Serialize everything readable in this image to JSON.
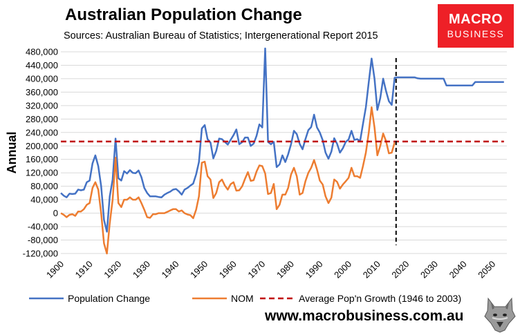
{
  "header": {
    "title": "Australian Population Change",
    "subtitle": "Sources: Australian Bureau of Statistics; Intergenerational Report 2015"
  },
  "logo": {
    "line1": "MACRO",
    "line2": "BUSINESS"
  },
  "footer": {
    "url": "www.macrobusiness.com.au"
  },
  "colors": {
    "population": "#4472c4",
    "nom": "#ed7d31",
    "average": "#c00000",
    "divider": "#000000",
    "logo_bg": "#ee2027"
  },
  "chart_data": {
    "type": "line",
    "title": "Australian Population Change",
    "xlabel": "",
    "ylabel": "Annual",
    "xlim": [
      1900,
      2055
    ],
    "ylim": [
      -120000,
      480000
    ],
    "yticks": [
      -120000,
      -80000,
      -40000,
      0,
      40000,
      80000,
      120000,
      160000,
      200000,
      240000,
      280000,
      320000,
      360000,
      400000,
      440000,
      480000
    ],
    "ytick_labels": [
      "-120,000",
      "-80,000",
      "-40,000",
      "0",
      "40,000",
      "80,000",
      "120,000",
      "160,000",
      "200,000",
      "240,000",
      "280,000",
      "320,000",
      "360,000",
      "400,000",
      "440,000",
      "480,000"
    ],
    "xticks": [
      1900,
      1910,
      1920,
      1930,
      1940,
      1950,
      1960,
      1970,
      1980,
      1990,
      2000,
      2010,
      2020,
      2030,
      2040,
      2050
    ],
    "xtick_labels": [
      "1900",
      "1910",
      "1920",
      "1930",
      "1940",
      "1950",
      "1960",
      "1970",
      "1980",
      "1990",
      "2000",
      "2010",
      "2020",
      "2030",
      "2040",
      "2050"
    ],
    "legend_position": "bottom",
    "series": [
      {
        "name": "Population Change",
        "color": "#4472c4",
        "points": [
          [
            1900,
            60000
          ],
          [
            1901,
            52000
          ],
          [
            1902,
            47000
          ],
          [
            1903,
            58000
          ],
          [
            1904,
            57000
          ],
          [
            1905,
            58000
          ],
          [
            1906,
            70000
          ],
          [
            1907,
            68000
          ],
          [
            1908,
            70000
          ],
          [
            1909,
            92000
          ],
          [
            1910,
            97000
          ],
          [
            1911,
            148000
          ],
          [
            1912,
            172000
          ],
          [
            1913,
            140000
          ],
          [
            1914,
            80000
          ],
          [
            1915,
            -20000
          ],
          [
            1916,
            -55000
          ],
          [
            1917,
            50000
          ],
          [
            1918,
            100000
          ],
          [
            1919,
            222000
          ],
          [
            1920,
            104000
          ],
          [
            1921,
            97000
          ],
          [
            1922,
            125000
          ],
          [
            1923,
            118000
          ],
          [
            1924,
            128000
          ],
          [
            1925,
            120000
          ],
          [
            1926,
            119000
          ],
          [
            1927,
            127000
          ],
          [
            1928,
            107000
          ],
          [
            1929,
            75000
          ],
          [
            1930,
            60000
          ],
          [
            1931,
            50000
          ],
          [
            1932,
            50000
          ],
          [
            1933,
            50000
          ],
          [
            1934,
            48000
          ],
          [
            1935,
            47000
          ],
          [
            1936,
            55000
          ],
          [
            1937,
            60000
          ],
          [
            1938,
            64000
          ],
          [
            1939,
            70000
          ],
          [
            1940,
            72000
          ],
          [
            1941,
            65000
          ],
          [
            1942,
            55000
          ],
          [
            1943,
            70000
          ],
          [
            1944,
            75000
          ],
          [
            1945,
            82000
          ],
          [
            1946,
            88000
          ],
          [
            1947,
            115000
          ],
          [
            1948,
            152000
          ],
          [
            1949,
            252000
          ],
          [
            1950,
            262000
          ],
          [
            1951,
            220000
          ],
          [
            1952,
            210000
          ],
          [
            1953,
            163000
          ],
          [
            1954,
            185000
          ],
          [
            1955,
            222000
          ],
          [
            1956,
            220000
          ],
          [
            1957,
            212000
          ],
          [
            1958,
            204000
          ],
          [
            1959,
            218000
          ],
          [
            1960,
            232000
          ],
          [
            1961,
            249000
          ],
          [
            1962,
            205000
          ],
          [
            1963,
            211000
          ],
          [
            1964,
            225000
          ],
          [
            1965,
            225000
          ],
          [
            1966,
            200000
          ],
          [
            1967,
            207000
          ],
          [
            1968,
            230000
          ],
          [
            1969,
            264000
          ],
          [
            1970,
            255000
          ],
          [
            1971,
            490000
          ],
          [
            1972,
            212000
          ],
          [
            1973,
            205000
          ],
          [
            1974,
            212000
          ],
          [
            1975,
            137000
          ],
          [
            1976,
            145000
          ],
          [
            1977,
            172000
          ],
          [
            1978,
            152000
          ],
          [
            1979,
            175000
          ],
          [
            1980,
            205000
          ],
          [
            1981,
            245000
          ],
          [
            1982,
            235000
          ],
          [
            1983,
            206000
          ],
          [
            1984,
            190000
          ],
          [
            1985,
            220000
          ],
          [
            1986,
            247000
          ],
          [
            1987,
            256000
          ],
          [
            1988,
            293000
          ],
          [
            1989,
            255000
          ],
          [
            1990,
            240000
          ],
          [
            1991,
            217000
          ],
          [
            1992,
            180000
          ],
          [
            1993,
            162000
          ],
          [
            1994,
            183000
          ],
          [
            1995,
            223000
          ],
          [
            1996,
            206000
          ],
          [
            1997,
            180000
          ],
          [
            1998,
            193000
          ],
          [
            1999,
            212000
          ],
          [
            2000,
            219000
          ],
          [
            2001,
            245000
          ],
          [
            2002,
            218000
          ],
          [
            2003,
            220000
          ],
          [
            2004,
            215000
          ],
          [
            2005,
            265000
          ],
          [
            2006,
            315000
          ],
          [
            2007,
            390000
          ],
          [
            2008,
            460000
          ],
          [
            2009,
            400000
          ],
          [
            2010,
            307000
          ],
          [
            2011,
            342000
          ],
          [
            2012,
            400000
          ],
          [
            2013,
            364000
          ],
          [
            2014,
            333000
          ],
          [
            2015,
            322000
          ],
          [
            2016,
            403000
          ],
          [
            2017,
            404000
          ],
          [
            2018,
            404000
          ],
          [
            2019,
            404000
          ],
          [
            2020,
            404000
          ],
          [
            2021,
            404000
          ],
          [
            2022,
            404000
          ],
          [
            2023,
            404000
          ],
          [
            2024,
            401000
          ],
          [
            2025,
            400000
          ],
          [
            2026,
            400000
          ],
          [
            2027,
            400000
          ],
          [
            2028,
            400000
          ],
          [
            2029,
            400000
          ],
          [
            2030,
            400000
          ],
          [
            2031,
            400000
          ],
          [
            2032,
            400000
          ],
          [
            2033,
            400000
          ],
          [
            2034,
            380000
          ],
          [
            2035,
            380000
          ],
          [
            2036,
            380000
          ],
          [
            2037,
            380000
          ],
          [
            2038,
            380000
          ],
          [
            2039,
            380000
          ],
          [
            2040,
            380000
          ],
          [
            2041,
            380000
          ],
          [
            2042,
            380000
          ],
          [
            2043,
            380000
          ],
          [
            2044,
            390000
          ],
          [
            2045,
            390000
          ],
          [
            2046,
            390000
          ],
          [
            2047,
            390000
          ],
          [
            2048,
            390000
          ],
          [
            2049,
            390000
          ],
          [
            2050,
            390000
          ],
          [
            2051,
            390000
          ],
          [
            2052,
            390000
          ],
          [
            2053,
            390000
          ],
          [
            2054,
            390000
          ]
        ]
      },
      {
        "name": "NOM",
        "color": "#ed7d31",
        "points": [
          [
            1900,
            0
          ],
          [
            1901,
            -5000
          ],
          [
            1902,
            -12000
          ],
          [
            1903,
            -5000
          ],
          [
            1904,
            -3000
          ],
          [
            1905,
            -8000
          ],
          [
            1906,
            5000
          ],
          [
            1907,
            5000
          ],
          [
            1908,
            12000
          ],
          [
            1909,
            25000
          ],
          [
            1910,
            30000
          ],
          [
            1911,
            75000
          ],
          [
            1912,
            92000
          ],
          [
            1913,
            70000
          ],
          [
            1914,
            0
          ],
          [
            1915,
            -90000
          ],
          [
            1916,
            -120000
          ],
          [
            1917,
            -30000
          ],
          [
            1918,
            40000
          ],
          [
            1919,
            165000
          ],
          [
            1920,
            30000
          ],
          [
            1921,
            18000
          ],
          [
            1922,
            40000
          ],
          [
            1923,
            40000
          ],
          [
            1924,
            47000
          ],
          [
            1925,
            40000
          ],
          [
            1926,
            40000
          ],
          [
            1927,
            47000
          ],
          [
            1928,
            30000
          ],
          [
            1929,
            10000
          ],
          [
            1930,
            -12000
          ],
          [
            1931,
            -14000
          ],
          [
            1932,
            -3000
          ],
          [
            1933,
            -3000
          ],
          [
            1934,
            0
          ],
          [
            1935,
            0
          ],
          [
            1936,
            0
          ],
          [
            1937,
            4000
          ],
          [
            1938,
            8000
          ],
          [
            1939,
            12000
          ],
          [
            1940,
            12000
          ],
          [
            1941,
            5000
          ],
          [
            1942,
            8000
          ],
          [
            1943,
            0
          ],
          [
            1944,
            -4000
          ],
          [
            1945,
            -6000
          ],
          [
            1946,
            -15000
          ],
          [
            1947,
            10000
          ],
          [
            1948,
            50000
          ],
          [
            1949,
            150000
          ],
          [
            1950,
            153000
          ],
          [
            1951,
            110000
          ],
          [
            1952,
            100000
          ],
          [
            1953,
            45000
          ],
          [
            1954,
            60000
          ],
          [
            1955,
            92000
          ],
          [
            1956,
            100000
          ],
          [
            1957,
            82000
          ],
          [
            1958,
            70000
          ],
          [
            1959,
            86000
          ],
          [
            1960,
            92000
          ],
          [
            1961,
            67000
          ],
          [
            1962,
            68000
          ],
          [
            1963,
            80000
          ],
          [
            1964,
            102000
          ],
          [
            1965,
            122000
          ],
          [
            1966,
            96000
          ],
          [
            1967,
            98000
          ],
          [
            1968,
            124000
          ],
          [
            1969,
            142000
          ],
          [
            1970,
            140000
          ],
          [
            1971,
            118000
          ],
          [
            1972,
            57000
          ],
          [
            1973,
            60000
          ],
          [
            1974,
            87000
          ],
          [
            1975,
            12000
          ],
          [
            1976,
            25000
          ],
          [
            1977,
            55000
          ],
          [
            1978,
            55000
          ],
          [
            1979,
            75000
          ],
          [
            1980,
            115000
          ],
          [
            1981,
            135000
          ],
          [
            1982,
            110000
          ],
          [
            1983,
            55000
          ],
          [
            1984,
            60000
          ],
          [
            1985,
            95000
          ],
          [
            1986,
            120000
          ],
          [
            1987,
            135000
          ],
          [
            1988,
            158000
          ],
          [
            1989,
            130000
          ],
          [
            1990,
            97000
          ],
          [
            1991,
            85000
          ],
          [
            1992,
            50000
          ],
          [
            1993,
            30000
          ],
          [
            1994,
            46000
          ],
          [
            1995,
            100000
          ],
          [
            1996,
            93000
          ],
          [
            1997,
            73000
          ],
          [
            1998,
            85000
          ],
          [
            1999,
            95000
          ],
          [
            2000,
            105000
          ],
          [
            2001,
            135000
          ],
          [
            2002,
            110000
          ],
          [
            2003,
            110000
          ],
          [
            2004,
            105000
          ],
          [
            2005,
            140000
          ],
          [
            2006,
            180000
          ],
          [
            2007,
            240000
          ],
          [
            2008,
            315000
          ],
          [
            2009,
            255000
          ],
          [
            2010,
            172000
          ],
          [
            2011,
            200000
          ],
          [
            2012,
            237000
          ],
          [
            2013,
            215000
          ],
          [
            2014,
            178000
          ],
          [
            2015,
            180000
          ],
          [
            2016,
            210000
          ]
        ]
      },
      {
        "name": "Average Pop'n Growth (1946 to 2003)",
        "color": "#c00000",
        "style": "dashed",
        "points": [
          [
            1900,
            213000
          ],
          [
            2054,
            213000
          ]
        ]
      }
    ],
    "annotations": [
      {
        "type": "vertical-dashed-line",
        "x": 2016.5,
        "color": "#000000"
      }
    ]
  }
}
